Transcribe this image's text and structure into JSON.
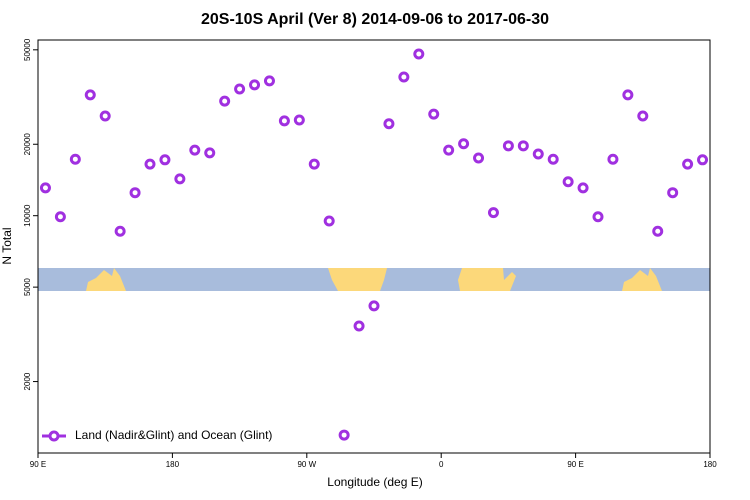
{
  "chart_data": {
    "type": "scatter",
    "title": "20S-10S April (Ver 8)   2014-09-06 to 2017-06-30",
    "x_label": "Longitude (deg E)",
    "y_label": "N Total",
    "x": [
      95,
      105,
      115,
      125,
      135,
      145,
      155,
      165,
      175,
      185,
      195,
      205,
      215,
      225,
      235,
      245,
      255,
      265,
      275,
      285,
      295,
      305,
      315,
      325,
      335,
      345,
      355,
      365,
      375,
      385,
      395,
      405,
      415,
      425,
      435,
      445,
      455,
      465,
      475,
      485,
      495,
      505,
      515,
      525,
      535
    ],
    "series": [
      {
        "name": "Land (Nadir&Glint) and Ocean (Glint)",
        "color": "#a030e0",
        "values": [
          13100,
          9900,
          17300,
          32300,
          26300,
          8600,
          12500,
          16500,
          17200,
          14300,
          18900,
          18400,
          30400,
          34200,
          35600,
          37000,
          25100,
          25300,
          16500,
          9500,
          1190,
          3430,
          4170,
          24400,
          38400,
          48000,
          26800,
          18900,
          20100,
          17500,
          10300,
          19700,
          19700,
          18200,
          17300,
          13900,
          13100,
          9900,
          17300,
          32300,
          26300,
          8600,
          12500,
          16500,
          17200
        ]
      }
    ],
    "xlim": [
      90,
      540
    ],
    "xticks": [
      {
        "value": 90,
        "label": "90 E"
      },
      180,
      {
        "value": 270,
        "label": "90 W"
      },
      {
        "value": 360,
        "label": "0"
      },
      {
        "value": 450,
        "label": "90 E"
      },
      {
        "value": 540,
        "label": "180"
      }
    ],
    "ylim": [
      1000,
      55000
    ],
    "ylog": true,
    "yticks": [
      2000,
      5000,
      10000,
      20000,
      50000
    ],
    "legend": "lower left"
  }
}
